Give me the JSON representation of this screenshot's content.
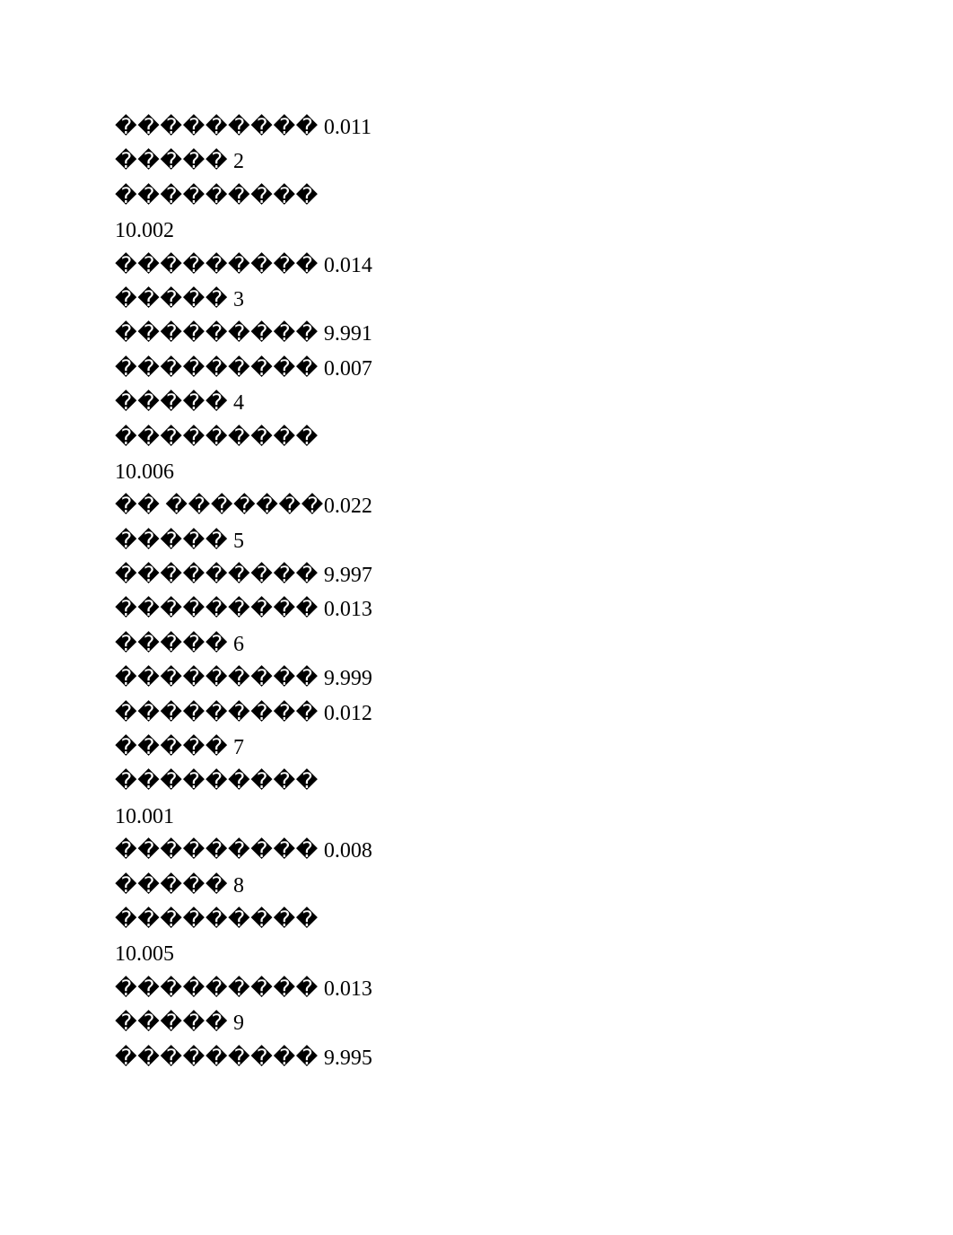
{
  "replacement_char": "�",
  "lines": [
    {
      "segments": [
        {
          "type": "glyphs",
          "count": 9
        },
        {
          "type": "space"
        },
        {
          "type": "num",
          "text": "0.011"
        }
      ]
    },
    {
      "segments": [
        {
          "type": "glyphs",
          "count": 5
        },
        {
          "type": "space"
        },
        {
          "type": "num",
          "text": "2"
        }
      ]
    },
    {
      "segments": [
        {
          "type": "glyphs",
          "count": 9
        }
      ]
    },
    {
      "segments": [
        {
          "type": "num",
          "text": "10.002"
        }
      ]
    },
    {
      "segments": [
        {
          "type": "glyphs",
          "count": 9
        },
        {
          "type": "space"
        },
        {
          "type": "num",
          "text": "0.014"
        }
      ]
    },
    {
      "segments": [
        {
          "type": "glyphs",
          "count": 5
        },
        {
          "type": "space"
        },
        {
          "type": "num",
          "text": "3"
        }
      ]
    },
    {
      "segments": [
        {
          "type": "glyphs",
          "count": 9
        },
        {
          "type": "space"
        },
        {
          "type": "num",
          "text": "9.991"
        }
      ]
    },
    {
      "segments": [
        {
          "type": "glyphs",
          "count": 9
        },
        {
          "type": "space"
        },
        {
          "type": "num",
          "text": "0.007"
        }
      ]
    },
    {
      "segments": [
        {
          "type": "glyphs",
          "count": 5
        },
        {
          "type": "space"
        },
        {
          "type": "num",
          "text": "4"
        }
      ]
    },
    {
      "segments": [
        {
          "type": "glyphs",
          "count": 9
        }
      ]
    },
    {
      "segments": [
        {
          "type": "num",
          "text": "10.006"
        }
      ]
    },
    {
      "segments": [
        {
          "type": "glyphs",
          "count": 2
        },
        {
          "type": "space"
        },
        {
          "type": "glyphs",
          "count": 7
        },
        {
          "type": "num",
          "text": "0.022"
        }
      ]
    },
    {
      "segments": [
        {
          "type": "glyphs",
          "count": 5
        },
        {
          "type": "space"
        },
        {
          "type": "num",
          "text": "5"
        }
      ]
    },
    {
      "segments": [
        {
          "type": "glyphs",
          "count": 9
        },
        {
          "type": "space"
        },
        {
          "type": "num",
          "text": "9.997"
        }
      ]
    },
    {
      "segments": [
        {
          "type": "glyphs",
          "count": 9
        },
        {
          "type": "space"
        },
        {
          "type": "num",
          "text": "0.013"
        }
      ]
    },
    {
      "segments": [
        {
          "type": "glyphs",
          "count": 5
        },
        {
          "type": "space"
        },
        {
          "type": "num",
          "text": "6"
        }
      ]
    },
    {
      "segments": [
        {
          "type": "glyphs",
          "count": 9
        },
        {
          "type": "space"
        },
        {
          "type": "num",
          "text": "9.999"
        }
      ]
    },
    {
      "segments": [
        {
          "type": "glyphs",
          "count": 9
        },
        {
          "type": "space"
        },
        {
          "type": "num",
          "text": "0.012"
        }
      ]
    },
    {
      "segments": [
        {
          "type": "glyphs",
          "count": 5
        },
        {
          "type": "space"
        },
        {
          "type": "num",
          "text": "7"
        }
      ]
    },
    {
      "segments": [
        {
          "type": "glyphs",
          "count": 9
        }
      ]
    },
    {
      "segments": [
        {
          "type": "num",
          "text": "10.001"
        }
      ]
    },
    {
      "segments": [
        {
          "type": "glyphs",
          "count": 9
        },
        {
          "type": "space"
        },
        {
          "type": "num",
          "text": "0.008"
        }
      ]
    },
    {
      "segments": [
        {
          "type": "glyphs",
          "count": 5
        },
        {
          "type": "space"
        },
        {
          "type": "num",
          "text": "8"
        }
      ]
    },
    {
      "segments": [
        {
          "type": "glyphs",
          "count": 9
        }
      ]
    },
    {
      "segments": [
        {
          "type": "num",
          "text": "10.005"
        }
      ]
    },
    {
      "segments": [
        {
          "type": "glyphs",
          "count": 9
        },
        {
          "type": "space"
        },
        {
          "type": "num",
          "text": "0.013"
        }
      ]
    },
    {
      "segments": [
        {
          "type": "glyphs",
          "count": 5
        },
        {
          "type": "space"
        },
        {
          "type": "num",
          "text": "9"
        }
      ]
    },
    {
      "segments": [
        {
          "type": "glyphs",
          "count": 9
        },
        {
          "type": "space"
        },
        {
          "type": "num",
          "text": "9.995"
        }
      ]
    }
  ]
}
